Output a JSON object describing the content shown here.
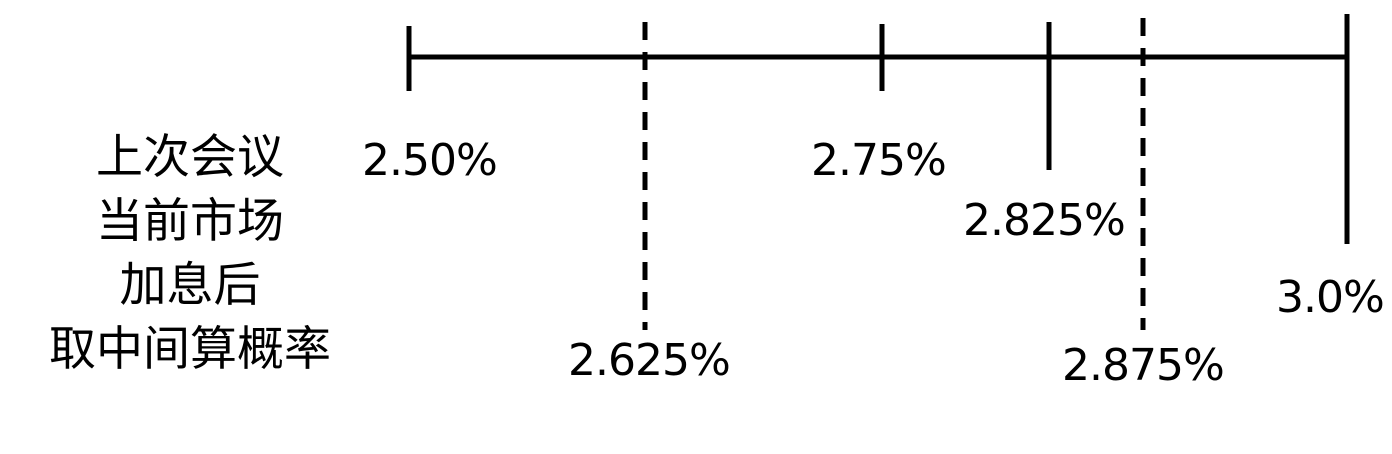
{
  "labels": {
    "line1": "上次会议",
    "line2": "当前市场",
    "line3": "加息后",
    "line4": "取中间算概率"
  },
  "scale": {
    "colors": {
      "line": "#000000",
      "text": "#000000"
    },
    "ticks": [
      {
        "value": 2.5,
        "label": "2.50%",
        "style": "solid"
      },
      {
        "value": 2.625,
        "label": "2.625%",
        "style": "dashed"
      },
      {
        "value": 2.75,
        "label": "2.75%",
        "style": "solid"
      },
      {
        "value": 2.825,
        "label": "2.825%",
        "style": "solid"
      },
      {
        "value": 2.875,
        "label": "2.875%",
        "style": "dashed"
      },
      {
        "value": 3.0,
        "label": "3.0%",
        "style": "solid"
      }
    ]
  }
}
